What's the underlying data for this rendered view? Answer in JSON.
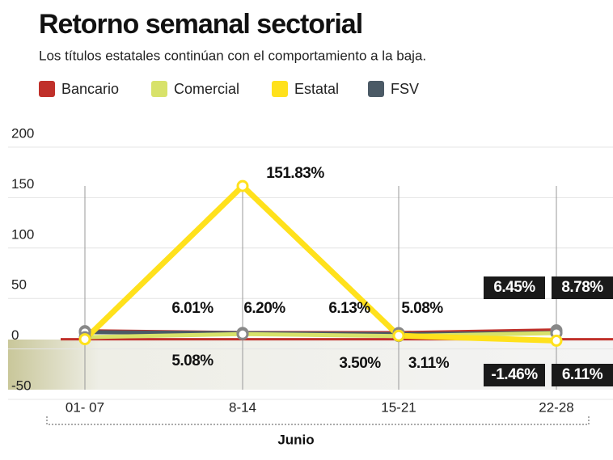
{
  "chart_data": {
    "type": "line",
    "title": "Retorno semanal sectorial",
    "subtitle": "Los títulos estatales continúan con el comportamiento a la baja.",
    "x_label": "Junio",
    "categories": [
      "01- 07",
      "8-14",
      "15-21",
      "22-28"
    ],
    "series": [
      {
        "name": "Bancario",
        "color": "#c0302a",
        "values": [
          8,
          6.2,
          6.13,
          8.78
        ],
        "value_labels": [
          null,
          "6.20%",
          "6.13%",
          "8.78%"
        ]
      },
      {
        "name": "Comercial",
        "color": "#d8e26a",
        "values": [
          2,
          5.08,
          3.11,
          6.11
        ],
        "value_labels": [
          null,
          "5.08%",
          "3.11%",
          "6.11%"
        ]
      },
      {
        "name": "Estatal",
        "color": "#ffe11c",
        "values": [
          0,
          151.83,
          3.5,
          -1.46
        ],
        "value_labels": [
          null,
          "151.83%",
          "3.50%",
          "-1.46%"
        ]
      },
      {
        "name": "FSV",
        "color": "#4b5a66",
        "values": [
          7,
          6.01,
          5.08,
          6.45
        ],
        "value_labels": [
          null,
          "6.01%",
          "5.08%",
          "6.45%"
        ]
      }
    ],
    "ylim": [
      -50,
      200
    ],
    "yticks": [
      200,
      150,
      100,
      50,
      0,
      -50
    ],
    "grid": true
  }
}
